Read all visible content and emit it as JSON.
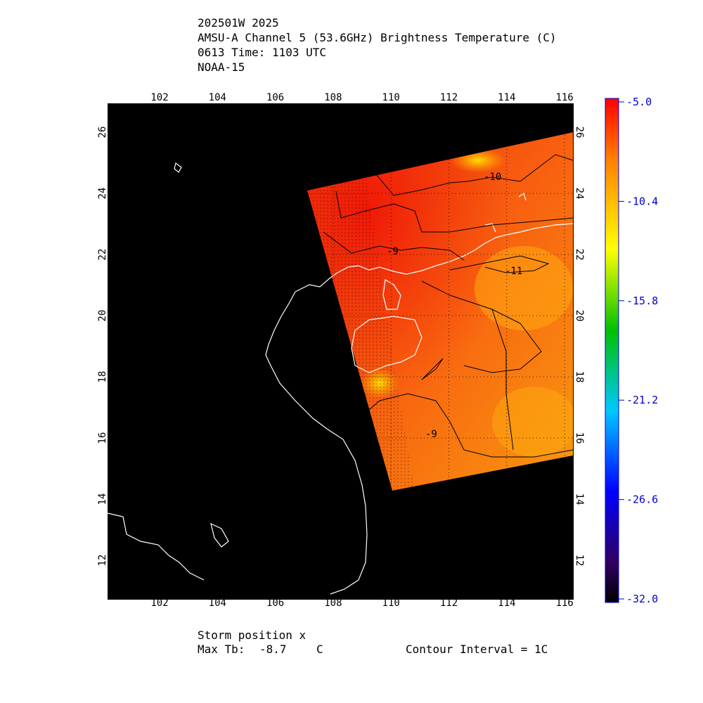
{
  "header": {
    "storm_id": "202501W 2025",
    "product": "AMSU-A Channel 5 (53.6GHz) Brightness Temperature (C)",
    "time": "0613 Time: 1103 UTC",
    "satellite": "NOAA-15"
  },
  "map": {
    "lon_ticks": [
      "102",
      "104",
      "106",
      "108",
      "110",
      "112",
      "114",
      "116"
    ],
    "lat_ticks": [
      "12",
      "14",
      "16",
      "18",
      "20",
      "22",
      "24",
      "26"
    ],
    "contour_labels": [
      "-10",
      "-9",
      "-11",
      "-9"
    ]
  },
  "colorbar": {
    "labels": [
      "-5.0",
      "-10.4",
      "-15.8",
      "-21.2",
      "-26.6",
      "-32.0"
    ],
    "colors": [
      "#ff0000",
      "#ff8000",
      "#ffff00",
      "#00c000",
      "#00c8ff",
      "#0000ff",
      "#300060",
      "#000000"
    ]
  },
  "footer": {
    "storm_position": "Storm position x",
    "max_tb_label": "Max Tb:",
    "max_tb_value": "-8.7",
    "max_tb_unit": "C",
    "contour_interval": "Contour Interval = 1C"
  }
}
